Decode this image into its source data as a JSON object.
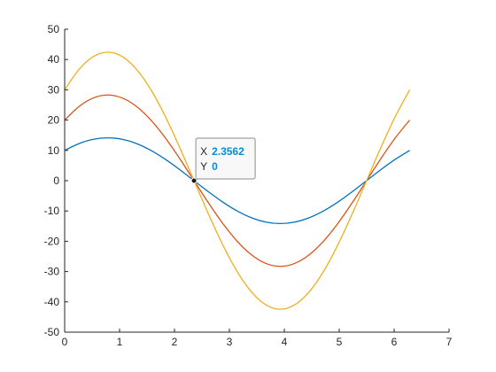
{
  "chart_data": {
    "type": "line",
    "title": "",
    "xlabel": "",
    "ylabel": "",
    "xlim": [
      0,
      7
    ],
    "ylim": [
      -50,
      50
    ],
    "xticks": [
      0,
      1,
      2,
      3,
      4,
      5,
      6,
      7
    ],
    "yticks": [
      -50,
      -40,
      -30,
      -20,
      -10,
      0,
      10,
      20,
      30,
      40,
      50
    ],
    "xtick_labels": [
      "0",
      "1",
      "2",
      "3",
      "4",
      "5",
      "6",
      "7"
    ],
    "ytick_labels": [
      "-50",
      "-40",
      "-30",
      "-20",
      "-10",
      "0",
      "10",
      "20",
      "30",
      "40",
      "50"
    ],
    "grid": false,
    "x": [
      0,
      0.2618,
      0.5236,
      0.7854,
      1.0472,
      1.309,
      1.5708,
      1.8326,
      2.0944,
      2.3562,
      2.618,
      2.8798,
      3.1416,
      3.4034,
      3.6652,
      3.927,
      4.1888,
      4.4506,
      4.7124,
      4.9742,
      5.236,
      5.4978,
      5.7596,
      6.0214,
      6.2832
    ],
    "series": [
      {
        "color": "#0072bd",
        "y": [
          10,
          12.25,
          13.66,
          14.14,
          13.66,
          12.25,
          10,
          7.07,
          3.66,
          0,
          -3.66,
          -7.07,
          -10,
          -12.25,
          -13.66,
          -14.14,
          -13.66,
          -12.25,
          -10,
          -7.07,
          -3.66,
          0,
          3.66,
          7.07,
          10
        ]
      },
      {
        "color": "#d95319",
        "y": [
          20,
          24.49,
          27.32,
          28.28,
          27.32,
          24.49,
          20,
          14.14,
          7.32,
          0,
          -7.32,
          -14.14,
          -20,
          -24.49,
          -27.32,
          -28.28,
          -27.32,
          -24.49,
          -20,
          -14.14,
          -7.32,
          0,
          7.32,
          14.14,
          20
        ]
      },
      {
        "color": "#edb120",
        "y": [
          30,
          36.74,
          40.98,
          42.43,
          40.98,
          36.74,
          30,
          21.21,
          10.98,
          0,
          -10.98,
          -21.21,
          -30,
          -36.74,
          -40.98,
          -42.43,
          -40.98,
          -36.74,
          -30,
          -21.21,
          -10.98,
          0,
          10.98,
          21.21,
          30
        ]
      }
    ],
    "datatip": {
      "x": 2.3562,
      "y": 0,
      "x_key": "X",
      "y_key": "Y",
      "x_text": "2.3562",
      "y_text": "0"
    }
  }
}
